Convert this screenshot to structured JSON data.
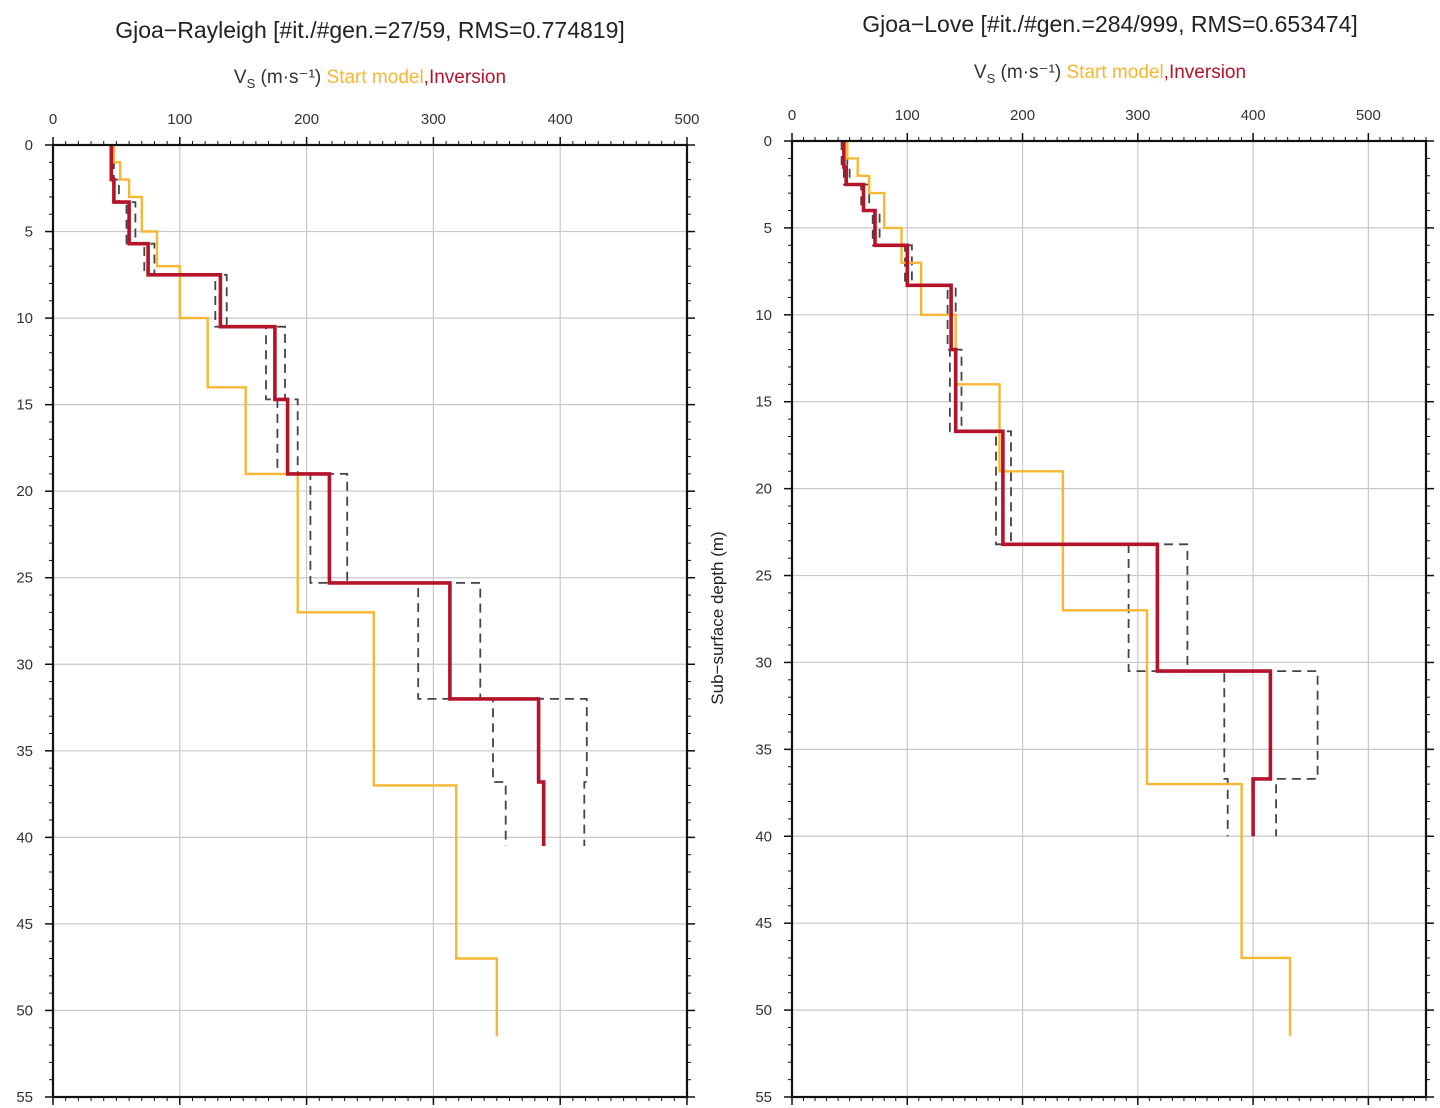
{
  "chart_data": [
    {
      "type": "line",
      "title": "Gjoa−Rayleigh [#it./#gen.=27/59, RMS=0.774819]",
      "xlabel": {
        "prefix": "V",
        "sub": "S",
        "units": " (m·s⁻¹) ",
        "start_label": "Start model",
        "sep": ",",
        "inv_label": "Inversion"
      },
      "ylabel": "",
      "x_axis_position": "top",
      "xlim": [
        0,
        500
      ],
      "ylim": [
        0,
        55
      ],
      "y_inverted": true,
      "grid": true,
      "x_ticks": [
        "0",
        "100",
        "200",
        "300",
        "400",
        "500"
      ],
      "y_ticks": [
        "0",
        "5",
        "10",
        "15",
        "20",
        "25",
        "30",
        "35",
        "40",
        "45",
        "50",
        "55"
      ],
      "colors": {
        "start": "#f7b733",
        "inversion": "#b5132a",
        "bounds": "#444444"
      },
      "series": [
        {
          "name": "Start model",
          "role": "start",
          "points": [
            [
              48,
              0
            ],
            [
              48,
              1
            ],
            [
              53,
              1
            ],
            [
              53,
              2
            ],
            [
              60,
              2
            ],
            [
              60,
              3
            ],
            [
              70,
              3
            ],
            [
              70,
              5
            ],
            [
              82,
              5
            ],
            [
              82,
              7
            ],
            [
              100,
              7
            ],
            [
              100,
              10
            ],
            [
              122,
              10
            ],
            [
              122,
              14
            ],
            [
              152,
              14
            ],
            [
              152,
              19
            ],
            [
              193,
              19
            ],
            [
              193,
              27
            ],
            [
              253,
              27
            ],
            [
              253,
              37
            ],
            [
              318,
              37
            ],
            [
              318,
              47
            ],
            [
              350,
              47
            ],
            [
              350,
              51.5
            ]
          ]
        },
        {
          "name": "Inversion",
          "role": "inversion",
          "points": [
            [
              46,
              0
            ],
            [
              46,
              2
            ],
            [
              48,
              2
            ],
            [
              48,
              3.3
            ],
            [
              60,
              3.3
            ],
            [
              60,
              5.7
            ],
            [
              75,
              5.7
            ],
            [
              75,
              7.5
            ],
            [
              132,
              7.5
            ],
            [
              132,
              10.5
            ],
            [
              175,
              10.5
            ],
            [
              175,
              14.7
            ],
            [
              185,
              14.7
            ],
            [
              185,
              19
            ],
            [
              218,
              19
            ],
            [
              218,
              25.3
            ],
            [
              313,
              25.3
            ],
            [
              313,
              32
            ],
            [
              383,
              32
            ],
            [
              383,
              36.8
            ],
            [
              387,
              36.8
            ],
            [
              387,
              40.5
            ]
          ]
        },
        {
          "role": "bound",
          "points": [
            [
              46,
              0
            ],
            [
              46,
              2
            ],
            [
              48,
              2
            ],
            [
              48,
              3.3
            ],
            [
              58,
              3.3
            ],
            [
              58,
              5.7
            ],
            [
              72,
              5.7
            ],
            [
              72,
              7.5
            ],
            [
              128,
              7.5
            ],
            [
              128,
              10.5
            ],
            [
              168,
              10.5
            ],
            [
              168,
              14.7
            ],
            [
              177,
              14.7
            ],
            [
              177,
              19
            ],
            [
              203,
              19
            ],
            [
              203,
              25.3
            ],
            [
              288,
              25.3
            ],
            [
              288,
              32
            ],
            [
              347,
              32
            ],
            [
              347,
              36.8
            ],
            [
              357,
              36.8
            ],
            [
              357,
              40.5
            ]
          ]
        },
        {
          "role": "bound",
          "points": [
            [
              48,
              0
            ],
            [
              48,
              2
            ],
            [
              52,
              2
            ],
            [
              52,
              3.3
            ],
            [
              65,
              3.3
            ],
            [
              65,
              5.7
            ],
            [
              80,
              5.7
            ],
            [
              80,
              7.5
            ],
            [
              137,
              7.5
            ],
            [
              137,
              10.5
            ],
            [
              183,
              10.5
            ],
            [
              183,
              14.7
            ],
            [
              193,
              14.7
            ],
            [
              193,
              19
            ],
            [
              232,
              19
            ],
            [
              232,
              25.3
            ],
            [
              337,
              25.3
            ],
            [
              337,
              32
            ],
            [
              421,
              32
            ],
            [
              421,
              36.8
            ],
            [
              419,
              36.8
            ],
            [
              419,
              40.5
            ]
          ]
        }
      ]
    },
    {
      "type": "line",
      "title": "Gjoa−Love [#it./#gen.=284/999, RMS=0.653474]",
      "xlabel": {
        "prefix": "V",
        "sub": "S",
        "units": " (m·s⁻¹) ",
        "start_label": "Start model",
        "sep": ",",
        "inv_label": "Inversion"
      },
      "ylabel": "Sub−surface depth (m)",
      "x_axis_position": "top",
      "xlim": [
        0,
        550
      ],
      "ylim": [
        0,
        55
      ],
      "y_inverted": true,
      "grid": true,
      "x_ticks": [
        "0",
        "100",
        "200",
        "300",
        "400",
        "500"
      ],
      "y_ticks": [
        "0",
        "5",
        "10",
        "15",
        "20",
        "25",
        "30",
        "35",
        "40",
        "45",
        "50",
        "55"
      ],
      "colors": {
        "start": "#f7b733",
        "inversion": "#b5132a",
        "bounds": "#444444"
      },
      "series": [
        {
          "name": "Start model",
          "role": "start",
          "points": [
            [
              48,
              0
            ],
            [
              48,
              1
            ],
            [
              57,
              1
            ],
            [
              57,
              2
            ],
            [
              67,
              2
            ],
            [
              67,
              3
            ],
            [
              80,
              3
            ],
            [
              80,
              5
            ],
            [
              95,
              5
            ],
            [
              95,
              7
            ],
            [
              112,
              7
            ],
            [
              112,
              10
            ],
            [
              142,
              10
            ],
            [
              142,
              14
            ],
            [
              180,
              14
            ],
            [
              180,
              19
            ],
            [
              235,
              19
            ],
            [
              235,
              27
            ],
            [
              308,
              27
            ],
            [
              308,
              37
            ],
            [
              390,
              37
            ],
            [
              390,
              47
            ],
            [
              432,
              47
            ],
            [
              432,
              51.5
            ]
          ]
        },
        {
          "name": "Inversion",
          "role": "inversion",
          "points": [
            [
              45,
              0
            ],
            [
              45,
              1.5
            ],
            [
              47,
              1.5
            ],
            [
              47,
              2.5
            ],
            [
              62,
              2.5
            ],
            [
              62,
              4
            ],
            [
              72,
              4
            ],
            [
              72,
              6
            ],
            [
              100,
              6
            ],
            [
              100,
              8.3
            ],
            [
              138,
              8.3
            ],
            [
              138,
              12
            ],
            [
              142,
              12
            ],
            [
              142,
              16.7
            ],
            [
              183,
              16.7
            ],
            [
              183,
              23.2
            ],
            [
              317,
              23.2
            ],
            [
              317,
              30.5
            ],
            [
              415,
              30.5
            ],
            [
              415,
              36.7
            ],
            [
              400,
              36.7
            ],
            [
              400,
              40
            ]
          ]
        },
        {
          "role": "bound",
          "points": [
            [
              43,
              0
            ],
            [
              43,
              1.5
            ],
            [
              45,
              1.5
            ],
            [
              45,
              2.5
            ],
            [
              60,
              2.5
            ],
            [
              60,
              4
            ],
            [
              70,
              4
            ],
            [
              70,
              6
            ],
            [
              98,
              6
            ],
            [
              98,
              8.3
            ],
            [
              135,
              8.3
            ],
            [
              135,
              12
            ],
            [
              137,
              12
            ],
            [
              137,
              16.7
            ],
            [
              177,
              16.7
            ],
            [
              177,
              23.2
            ],
            [
              292,
              23.2
            ],
            [
              292,
              30.5
            ],
            [
              375,
              30.5
            ],
            [
              375,
              36.7
            ],
            [
              378,
              36.7
            ],
            [
              378,
              40
            ]
          ]
        },
        {
          "role": "bound",
          "points": [
            [
              48,
              0
            ],
            [
              48,
              1.5
            ],
            [
              50,
              1.5
            ],
            [
              50,
              2.5
            ],
            [
              67,
              2.5
            ],
            [
              67,
              4
            ],
            [
              76,
              4
            ],
            [
              76,
              6
            ],
            [
              104,
              6
            ],
            [
              104,
              8.3
            ],
            [
              142,
              8.3
            ],
            [
              142,
              12
            ],
            [
              147,
              12
            ],
            [
              147,
              16.7
            ],
            [
              190,
              16.7
            ],
            [
              190,
              23.2
            ],
            [
              343,
              23.2
            ],
            [
              343,
              30.5
            ],
            [
              456,
              30.5
            ],
            [
              456,
              36.7
            ],
            [
              420,
              36.7
            ],
            [
              420,
              40
            ]
          ]
        }
      ]
    }
  ]
}
